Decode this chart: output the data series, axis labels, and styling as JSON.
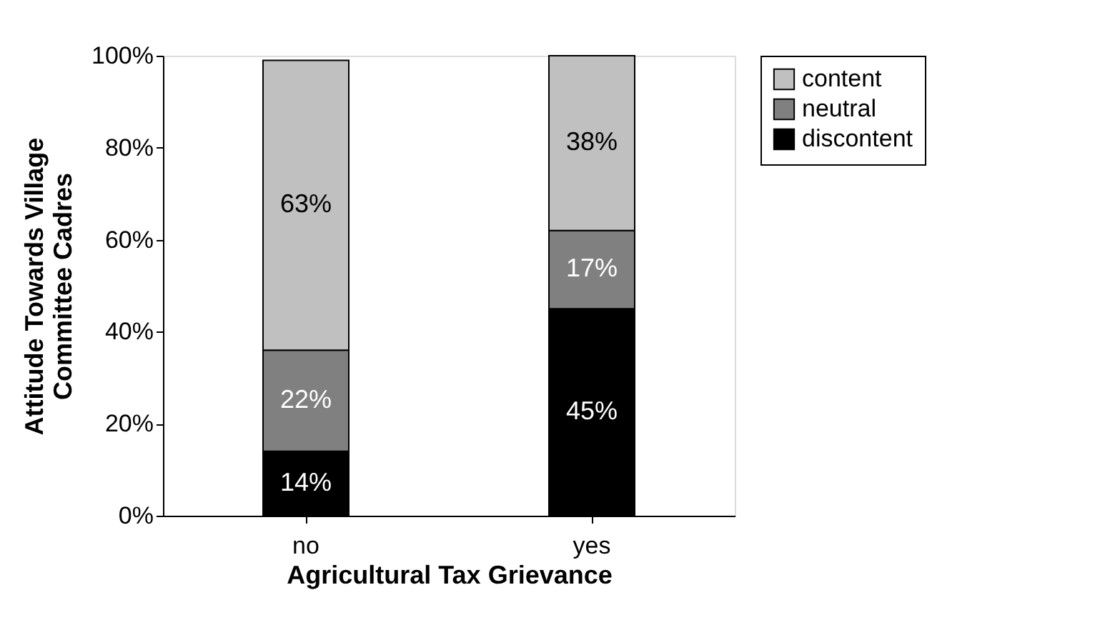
{
  "chart_data": {
    "type": "bar",
    "stacked": true,
    "xlabel": "Agricultural Tax Grievance",
    "ylabel": "Attitude Towards Village Committee Cadres",
    "categories": [
      "no",
      "yes"
    ],
    "series": [
      {
        "name": "discontent",
        "color": "#000000",
        "values": [
          14,
          45
        ],
        "value_labels": [
          "14%",
          "45%"
        ]
      },
      {
        "name": "neutral",
        "color": "#808080",
        "values": [
          22,
          17
        ],
        "value_labels": [
          "22%",
          "17%"
        ]
      },
      {
        "name": "content",
        "color": "#c0c0c0",
        "values": [
          63,
          38
        ],
        "value_labels": [
          "63%",
          "38%"
        ]
      }
    ],
    "ylim": [
      0,
      100
    ],
    "yticks": [
      {
        "value": 0,
        "label": "0%"
      },
      {
        "value": 20,
        "label": "20%"
      },
      {
        "value": 40,
        "label": "40%"
      },
      {
        "value": 60,
        "label": "60%"
      },
      {
        "value": 80,
        "label": "80%"
      },
      {
        "value": 100,
        "label": "100%"
      }
    ],
    "grid": false,
    "legend": "right"
  }
}
